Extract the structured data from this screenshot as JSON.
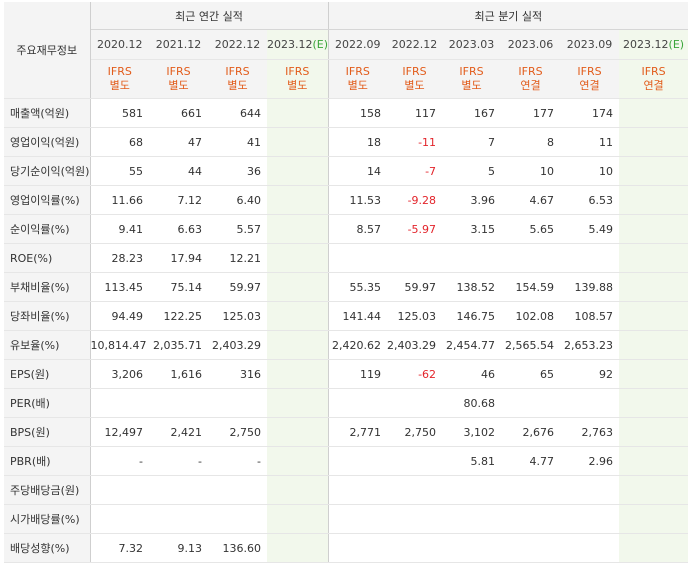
{
  "header": {
    "row_label_title": "주요재무정보",
    "annual_title": "최근 연간 실적",
    "quarterly_title": "최근 분기 실적",
    "annual_periods": [
      {
        "label": "2020.12",
        "estimate": ""
      },
      {
        "label": "2021.12",
        "estimate": ""
      },
      {
        "label": "2022.12",
        "estimate": ""
      },
      {
        "label": "2023.12",
        "estimate": "(E)"
      }
    ],
    "quarterly_periods": [
      {
        "label": "2022.09",
        "estimate": ""
      },
      {
        "label": "2022.12",
        "estimate": ""
      },
      {
        "label": "2023.03",
        "estimate": ""
      },
      {
        "label": "2023.06",
        "estimate": ""
      },
      {
        "label": "2023.09",
        "estimate": ""
      },
      {
        "label": "2023.12",
        "estimate": "(E)"
      }
    ],
    "standards": [
      [
        "IFRS",
        "별도"
      ],
      [
        "IFRS",
        "별도"
      ],
      [
        "IFRS",
        "별도"
      ],
      [
        "IFRS",
        "별도"
      ],
      [
        "IFRS",
        "별도"
      ],
      [
        "IFRS",
        "별도"
      ],
      [
        "IFRS",
        "별도"
      ],
      [
        "IFRS",
        "연결"
      ],
      [
        "IFRS",
        "연결"
      ],
      [
        "IFRS",
        "연결"
      ]
    ]
  },
  "rows": [
    {
      "label": "매출액(억원)",
      "values": [
        "581",
        "661",
        "644",
        "",
        "158",
        "117",
        "167",
        "177",
        "174",
        ""
      ]
    },
    {
      "label": "영업이익(억원)",
      "values": [
        "68",
        "47",
        "41",
        "",
        "18",
        "-11",
        "7",
        "8",
        "11",
        ""
      ]
    },
    {
      "label": "당기순이익(억원)",
      "values": [
        "55",
        "44",
        "36",
        "",
        "14",
        "-7",
        "5",
        "10",
        "10",
        ""
      ]
    },
    {
      "label": "영업이익률(%)",
      "values": [
        "11.66",
        "7.12",
        "6.40",
        "",
        "11.53",
        "-9.28",
        "3.96",
        "4.67",
        "6.53",
        ""
      ]
    },
    {
      "label": "순이익률(%)",
      "values": [
        "9.41",
        "6.63",
        "5.57",
        "",
        "8.57",
        "-5.97",
        "3.15",
        "5.65",
        "5.49",
        ""
      ]
    },
    {
      "label": "ROE(%)",
      "values": [
        "28.23",
        "17.94",
        "12.21",
        "",
        "",
        "",
        "",
        "",
        "",
        ""
      ]
    },
    {
      "label": "부채비율(%)",
      "values": [
        "113.45",
        "75.14",
        "59.97",
        "",
        "55.35",
        "59.97",
        "138.52",
        "154.59",
        "139.88",
        ""
      ]
    },
    {
      "label": "당좌비율(%)",
      "values": [
        "94.49",
        "122.25",
        "125.03",
        "",
        "141.44",
        "125.03",
        "146.75",
        "102.08",
        "108.57",
        ""
      ]
    },
    {
      "label": "유보율(%)",
      "values": [
        "10,814.47",
        "2,035.71",
        "2,403.29",
        "",
        "2,420.62",
        "2,403.29",
        "2,454.77",
        "2,565.54",
        "2,653.23",
        ""
      ]
    },
    {
      "label": "EPS(원)",
      "values": [
        "3,206",
        "1,616",
        "316",
        "",
        "119",
        "-62",
        "46",
        "65",
        "92",
        ""
      ]
    },
    {
      "label": "PER(배)",
      "values": [
        "",
        "",
        "",
        "",
        "",
        "",
        "80.68",
        "",
        "",
        ""
      ]
    },
    {
      "label": "BPS(원)",
      "values": [
        "12,497",
        "2,421",
        "2,750",
        "",
        "2,771",
        "2,750",
        "3,102",
        "2,676",
        "2,763",
        ""
      ]
    },
    {
      "label": "PBR(배)",
      "values": [
        "-",
        "-",
        "-",
        "",
        "",
        "",
        "5.81",
        "4.77",
        "2.96",
        ""
      ]
    },
    {
      "label": "주당배당금(원)",
      "values": [
        "",
        "",
        "",
        "",
        "",
        "",
        "",
        "",
        "",
        ""
      ]
    },
    {
      "label": "시가배당률(%)",
      "values": [
        "",
        "",
        "",
        "",
        "",
        "",
        "",
        "",
        "",
        ""
      ]
    },
    {
      "label": "배당성향(%)",
      "values": [
        "7.32",
        "9.13",
        "136.60",
        "",
        "",
        "",
        "",
        "",
        "",
        ""
      ]
    }
  ],
  "colors": {
    "standard_text": "#e25c1b",
    "negative_text": "#e3242b",
    "estimate_bg": "#f2f8ec",
    "estimate_mark": "#3aa53a"
  }
}
